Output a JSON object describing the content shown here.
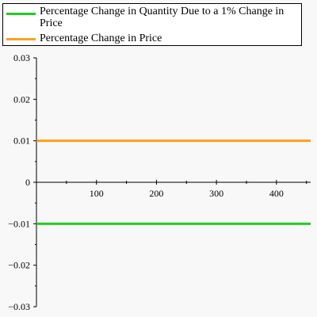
{
  "chart_data": {
    "type": "line",
    "title": "",
    "xlabel": "",
    "ylabel": "",
    "xlim": [
      0,
      457
    ],
    "ylim": [
      -0.03,
      0.03
    ],
    "x_ticks": [
      100,
      200,
      300,
      400
    ],
    "x_tick_labels": [
      "100",
      "200",
      "300",
      "400"
    ],
    "y_ticks": [
      -0.03,
      -0.02,
      -0.01,
      0,
      0.01,
      0.02,
      0.03
    ],
    "y_tick_labels": [
      "−0.03",
      "−0.02",
      "−0.01",
      "0",
      "0.01",
      "0.02",
      "0.03"
    ],
    "grid": false,
    "legend_position": "top",
    "series": [
      {
        "name": "Percentage Change in Quantity Due to a 1% Change in Price",
        "color": "#22cc22",
        "x": [
          0,
          457
        ],
        "y": [
          -0.01,
          -0.01
        ]
      },
      {
        "name": "Percentage Change in Price",
        "color": "#ffa020",
        "x": [
          0,
          457
        ],
        "y": [
          0.01,
          0.01
        ]
      }
    ]
  }
}
